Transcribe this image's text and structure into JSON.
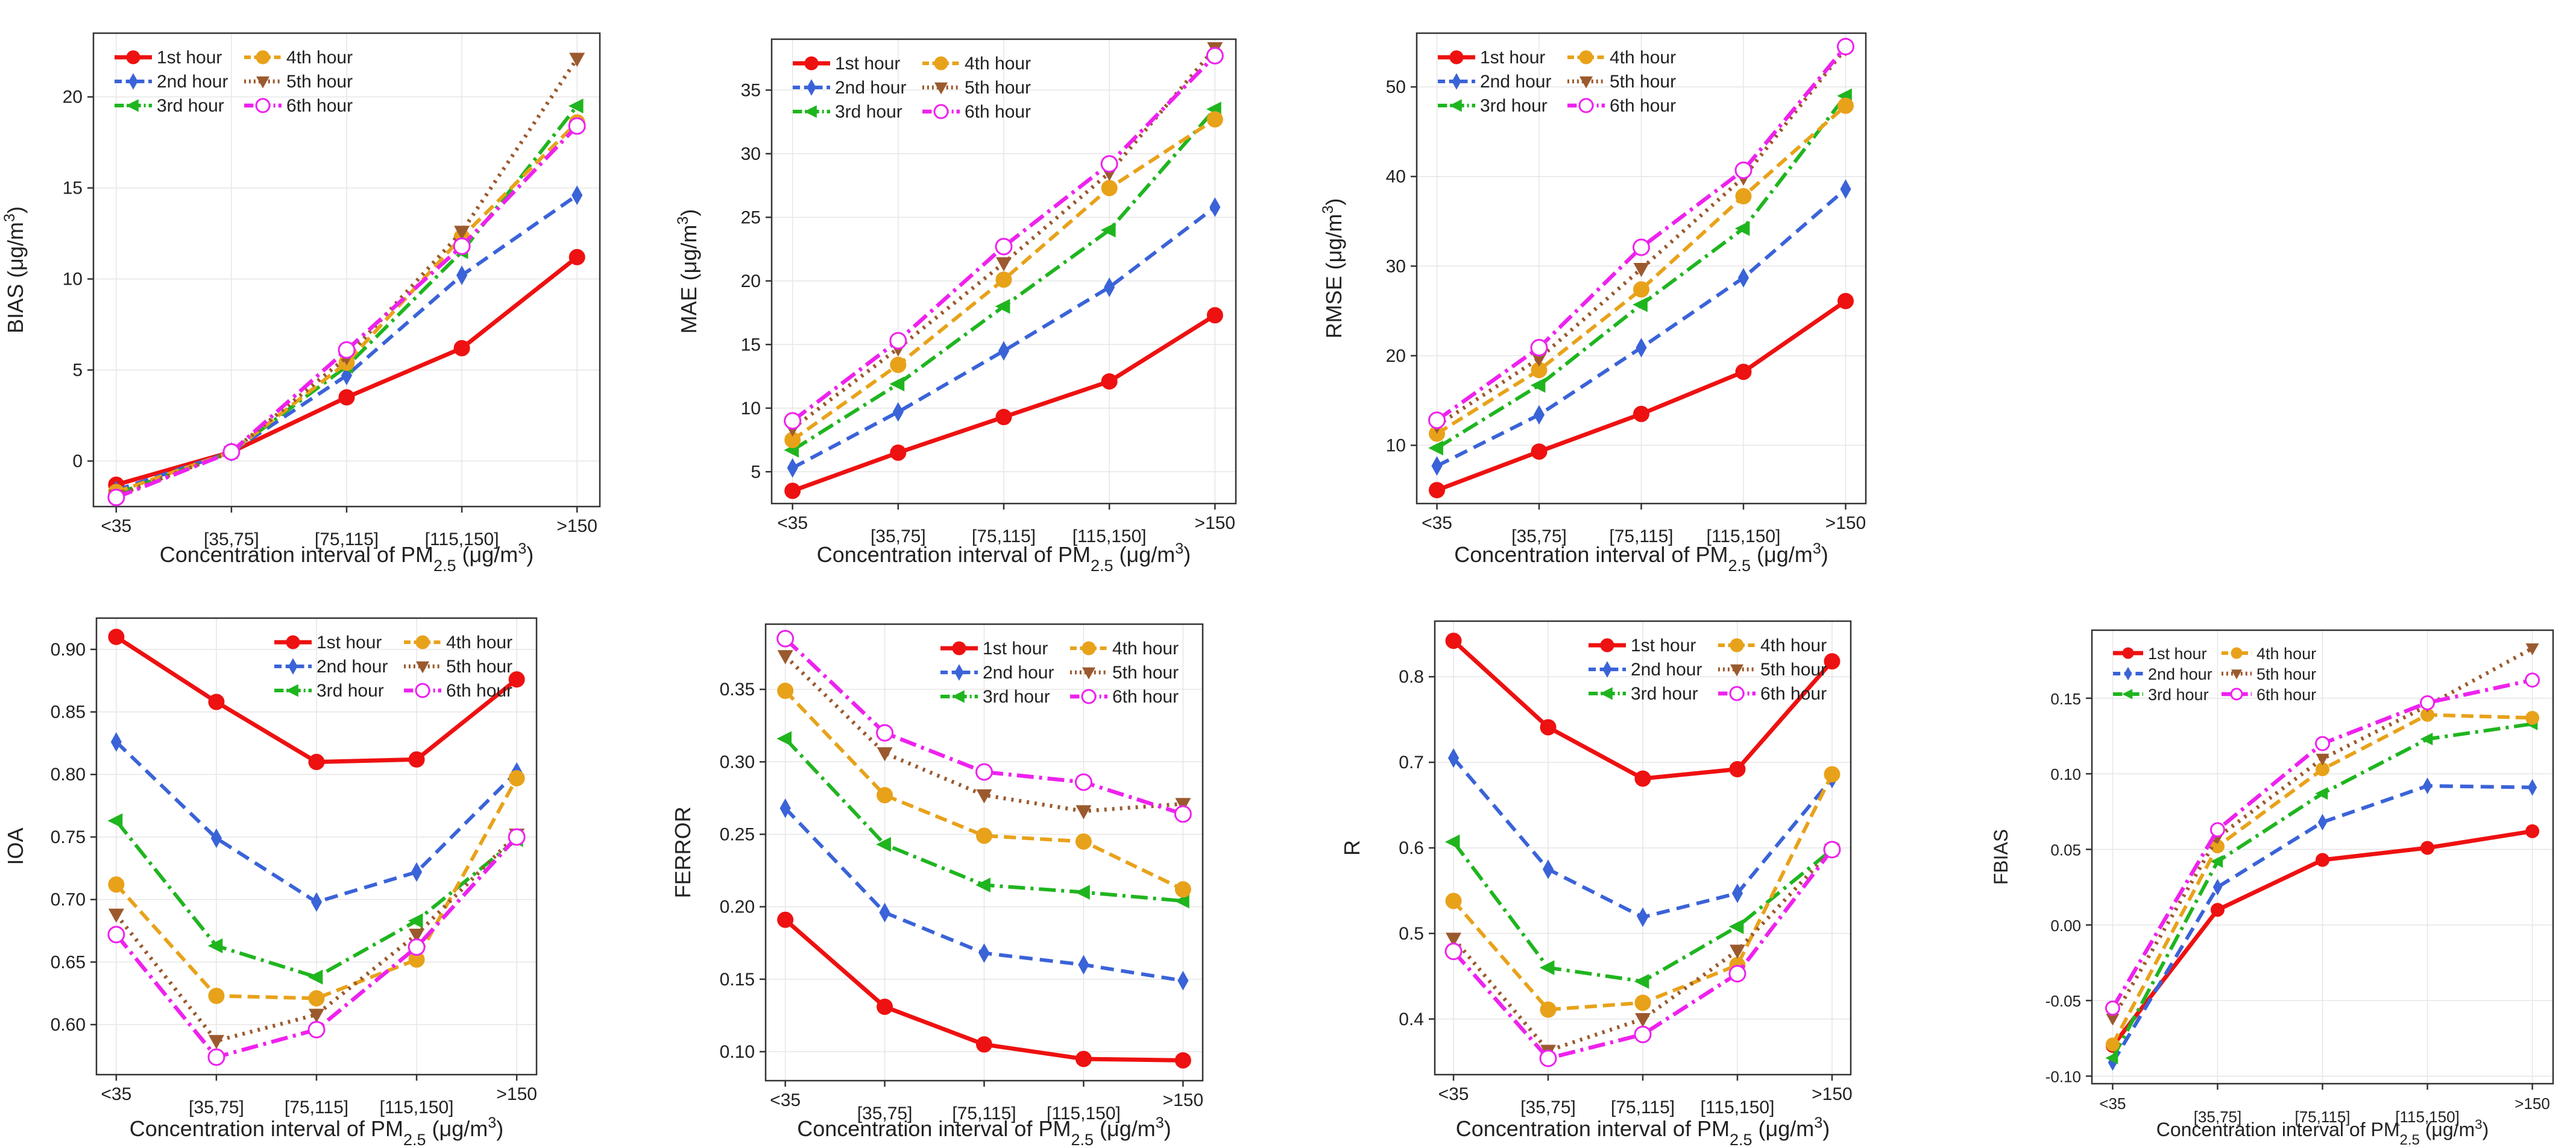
{
  "colors": {
    "1st hour": "#ee1111",
    "2nd hour": "#3a63d8",
    "3rd hour": "#1fb51f",
    "4th hour": "#e8a21a",
    "5th hour": "#9b5a2e",
    "6th hour": "#ee22ee"
  },
  "chart_data": [
    {
      "type": "line",
      "categories": [
        "<35",
        "[35,75]",
        "[75,115]",
        "[115,150]",
        ">150"
      ],
      "ylabel": "BIAS (μg/m³)",
      "xlabel": "Concentration interval of PM₂.₅ (μg/m³)",
      "ylim": [
        -2.5,
        23.5
      ],
      "yticks": [
        0,
        5,
        10,
        15,
        20
      ],
      "ytick_labels": [
        "0",
        "5",
        "10",
        "15",
        "20"
      ],
      "legend": "top-left",
      "series": [
        {
          "name": "1st hour",
          "values": [
            -1.3,
            0.5,
            3.5,
            6.2,
            11.2
          ]
        },
        {
          "name": "2nd hour",
          "values": [
            -1.6,
            0.5,
            4.7,
            10.2,
            14.6
          ]
        },
        {
          "name": "3rd hour",
          "values": [
            -1.8,
            0.5,
            5.2,
            11.5,
            19.5
          ]
        },
        {
          "name": "4th hour",
          "values": [
            -1.7,
            0.5,
            5.4,
            12.3,
            18.6
          ]
        },
        {
          "name": "5th hour",
          "values": [
            -1.9,
            0.5,
            5.7,
            12.6,
            22.1
          ]
        },
        {
          "name": "6th hour",
          "values": [
            -2.0,
            0.5,
            6.1,
            11.8,
            18.4
          ]
        }
      ]
    },
    {
      "type": "line",
      "categories": [
        "<35",
        "[35,75]",
        "[75,115]",
        "[115,150]",
        ">150"
      ],
      "ylabel": "MAE (μg/m³)",
      "xlabel": "Concentration interval of PM₂.₅ (μg/m³)",
      "ylim": [
        2.5,
        39
      ],
      "yticks": [
        5,
        10,
        15,
        20,
        25,
        30,
        35
      ],
      "ytick_labels": [
        "5",
        "10",
        "15",
        "20",
        "25",
        "30",
        "35"
      ],
      "legend": "top-left",
      "series": [
        {
          "name": "1st hour",
          "values": [
            3.5,
            6.5,
            9.3,
            12.1,
            17.3
          ]
        },
        {
          "name": "2nd hour",
          "values": [
            5.3,
            9.7,
            14.5,
            19.5,
            25.8
          ]
        },
        {
          "name": "3rd hour",
          "values": [
            6.7,
            11.9,
            18.0,
            24.0,
            33.5
          ]
        },
        {
          "name": "4th hour",
          "values": [
            7.5,
            13.4,
            20.1,
            27.3,
            32.7
          ]
        },
        {
          "name": "5th hour",
          "values": [
            8.4,
            14.7,
            21.4,
            28.5,
            38.3
          ]
        },
        {
          "name": "6th hour",
          "values": [
            9.0,
            15.3,
            22.7,
            29.2,
            37.7
          ]
        }
      ]
    },
    {
      "type": "line",
      "categories": [
        "<35",
        "[35,75]",
        "[75,115]",
        "[115,150]",
        ">150"
      ],
      "ylabel": "RMSE (μg/m³)",
      "xlabel": "Concentration interval of PM₂.₅ (μg/m³)",
      "ylim": [
        3.5,
        56
      ],
      "yticks": [
        10,
        20,
        30,
        40,
        50
      ],
      "ytick_labels": [
        "10",
        "20",
        "30",
        "40",
        "50"
      ],
      "legend": "top-left",
      "series": [
        {
          "name": "1st hour",
          "values": [
            5.0,
            9.3,
            13.5,
            18.2,
            26.1
          ]
        },
        {
          "name": "2nd hour",
          "values": [
            7.7,
            13.4,
            20.9,
            28.7,
            38.6
          ]
        },
        {
          "name": "3rd hour",
          "values": [
            9.7,
            16.7,
            25.7,
            34.2,
            49.0
          ]
        },
        {
          "name": "4th hour",
          "values": [
            11.3,
            18.4,
            27.4,
            37.8,
            47.9
          ]
        },
        {
          "name": "5th hour",
          "values": [
            12.2,
            19.7,
            29.7,
            39.9,
            54.3
          ]
        },
        {
          "name": "6th hour",
          "values": [
            12.8,
            20.9,
            32.1,
            40.7,
            54.5
          ]
        }
      ]
    },
    {
      "type": "line",
      "categories": [
        "<35",
        "[35,75]",
        "[75,115]",
        "[115,150]",
        ">150"
      ],
      "ylabel": "IOA",
      "xlabel": "Concentration interval of PM₂.₅ (μg/m³)",
      "ylim": [
        0.56,
        0.925
      ],
      "yticks": [
        0.6,
        0.65,
        0.7,
        0.75,
        0.8,
        0.85,
        0.9
      ],
      "ytick_labels": [
        "0.60",
        "0.65",
        "0.70",
        "0.75",
        "0.80",
        "0.85",
        "0.90"
      ],
      "legend": "top-right",
      "series": [
        {
          "name": "1st hour",
          "values": [
            0.91,
            0.858,
            0.81,
            0.812,
            0.876
          ]
        },
        {
          "name": "2nd hour",
          "values": [
            0.826,
            0.749,
            0.698,
            0.722,
            0.802
          ]
        },
        {
          "name": "3rd hour",
          "values": [
            0.763,
            0.663,
            0.638,
            0.683,
            0.748
          ]
        },
        {
          "name": "4th hour",
          "values": [
            0.712,
            0.623,
            0.621,
            0.652,
            0.797
          ]
        },
        {
          "name": "5th hour",
          "values": [
            0.688,
            0.587,
            0.608,
            0.672,
            0.752
          ]
        },
        {
          "name": "6th hour",
          "values": [
            0.672,
            0.574,
            0.596,
            0.662,
            0.75
          ]
        }
      ]
    },
    {
      "type": "line",
      "categories": [
        "<35",
        "[35,75]",
        "[75,115]",
        "[115,150]",
        ">150"
      ],
      "ylabel": "FERROR",
      "xlabel": "Concentration interval of PM₂.₅ (μg/m³)",
      "ylim": [
        0.08,
        0.395
      ],
      "yticks": [
        0.1,
        0.15,
        0.2,
        0.25,
        0.3,
        0.35
      ],
      "ytick_labels": [
        "0.10",
        "0.15",
        "0.20",
        "0.25",
        "0.30",
        "0.35"
      ],
      "legend": "top-right",
      "series": [
        {
          "name": "1st hour",
          "values": [
            0.191,
            0.131,
            0.105,
            0.095,
            0.094
          ]
        },
        {
          "name": "2nd hour",
          "values": [
            0.268,
            0.196,
            0.168,
            0.16,
            0.149
          ]
        },
        {
          "name": "3rd hour",
          "values": [
            0.316,
            0.243,
            0.215,
            0.21,
            0.204
          ]
        },
        {
          "name": "4th hour",
          "values": [
            0.349,
            0.277,
            0.249,
            0.245,
            0.212
          ]
        },
        {
          "name": "5th hour",
          "values": [
            0.373,
            0.306,
            0.277,
            0.266,
            0.271
          ]
        },
        {
          "name": "6th hour",
          "values": [
            0.385,
            0.32,
            0.293,
            0.286,
            0.264
          ]
        }
      ]
    },
    {
      "type": "line",
      "categories": [
        "<35",
        "[35,75]",
        "[75,115]",
        "[115,150]",
        ">150"
      ],
      "ylabel": "R",
      "xlabel": "Concentration interval of PM₂.₅ (μg/m³)",
      "ylim": [
        0.335,
        0.865
      ],
      "yticks": [
        0.4,
        0.5,
        0.6,
        0.7,
        0.8
      ],
      "ytick_labels": [
        "0.4",
        "0.5",
        "0.6",
        "0.7",
        "0.8"
      ],
      "legend": "top-right",
      "series": [
        {
          "name": "1st hour",
          "values": [
            0.842,
            0.741,
            0.681,
            0.692,
            0.818
          ]
        },
        {
          "name": "2nd hour",
          "values": [
            0.705,
            0.575,
            0.519,
            0.547,
            0.681
          ]
        },
        {
          "name": "3rd hour",
          "values": [
            0.607,
            0.46,
            0.444,
            0.508,
            0.598
          ]
        },
        {
          "name": "4th hour",
          "values": [
            0.538,
            0.411,
            0.419,
            0.463,
            0.686
          ]
        },
        {
          "name": "5th hour",
          "values": [
            0.494,
            0.363,
            0.4,
            0.48,
            0.598
          ]
        },
        {
          "name": "6th hour",
          "values": [
            0.479,
            0.354,
            0.382,
            0.453,
            0.598
          ]
        }
      ]
    },
    {
      "type": "line",
      "categories": [
        "<35",
        "[35,75]",
        "[75,115]",
        "[115,150]",
        ">150"
      ],
      "ylabel": "FBIAS",
      "xlabel": "Concentration interval of PM₂.₅ (μg/m³)",
      "ylim": [
        -0.105,
        0.195
      ],
      "yticks": [
        -0.1,
        -0.05,
        0.0,
        0.05,
        0.1,
        0.15
      ],
      "ytick_labels": [
        "-0.10",
        "-0.05",
        "0.00",
        "0.05",
        "0.10",
        "0.15"
      ],
      "legend": "top-left",
      "series": [
        {
          "name": "1st hour",
          "values": [
            -0.08,
            0.01,
            0.043,
            0.051,
            0.062
          ]
        },
        {
          "name": "2nd hour",
          "values": [
            -0.091,
            0.025,
            0.068,
            0.092,
            0.091
          ]
        },
        {
          "name": "3rd hour",
          "values": [
            -0.088,
            0.042,
            0.087,
            0.123,
            0.133
          ]
        },
        {
          "name": "4th hour",
          "values": [
            -0.079,
            0.052,
            0.103,
            0.139,
            0.137
          ]
        },
        {
          "name": "5th hour",
          "values": [
            -0.062,
            0.058,
            0.11,
            0.145,
            0.183
          ]
        },
        {
          "name": "6th hour",
          "values": [
            -0.055,
            0.063,
            0.12,
            0.147,
            0.162
          ]
        }
      ]
    }
  ]
}
